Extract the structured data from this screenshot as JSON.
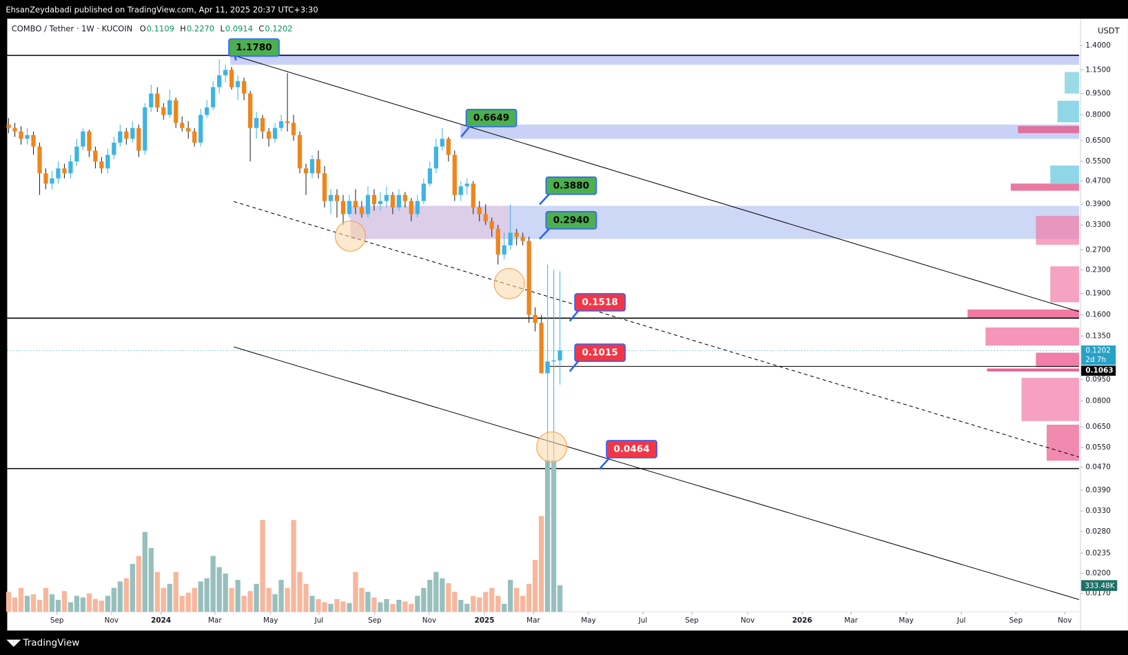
{
  "header": {
    "publisher": "EhsanZeydabadi published on TradingView.com, Apr 11, 2025 20:37 UTC+3:30"
  },
  "chart_data": {
    "type": "candlestick",
    "symbol": "COMBO / Tether · 1W · KUCOIN",
    "legend": [
      {
        "key": "O",
        "value": "0.1109"
      },
      {
        "key": "H",
        "value": "0.2270"
      },
      {
        "key": "L",
        "value": "0.0914"
      },
      {
        "key": "C",
        "value": "0.1202"
      }
    ],
    "currency": "USDT",
    "log_scale": true,
    "up_color": "#3db4e4",
    "down_color": "#f0851a",
    "volume_up_color": "#97bfbd",
    "volume_down_color": "#f7b79d",
    "open": [
      0.74,
      0.72,
      0.7,
      0.66,
      0.68,
      0.62,
      0.5,
      0.46,
      0.48,
      0.52,
      0.5,
      0.55,
      0.62,
      0.7,
      0.6,
      0.55,
      0.52,
      0.58,
      0.64,
      0.7,
      0.66,
      0.72,
      0.6,
      0.85,
      0.95,
      0.85,
      0.8,
      0.9,
      0.75,
      0.72,
      0.7,
      0.64,
      0.8,
      0.85,
      1.0,
      1.1,
      1.15,
      1.0,
      1.05,
      0.95,
      0.72,
      0.78,
      0.7,
      0.66,
      0.72,
      0.76,
      0.75,
      0.68,
      0.52,
      0.5,
      0.56,
      0.5,
      0.4,
      0.42,
      0.4,
      0.36,
      0.4,
      0.38,
      0.36,
      0.42,
      0.39,
      0.4,
      0.42,
      0.38,
      0.42,
      0.4,
      0.36,
      0.4,
      0.46,
      0.52,
      0.62,
      0.66,
      0.58,
      0.42,
      0.45,
      0.46,
      0.38,
      0.36,
      0.34,
      0.32,
      0.26,
      0.28,
      0.31,
      0.3,
      0.29,
      0.16,
      0.15,
      0.1,
      0.11,
      0.1109
    ],
    "high": [
      0.78,
      0.75,
      0.73,
      0.72,
      0.7,
      0.64,
      0.52,
      0.51,
      0.55,
      0.54,
      0.58,
      0.66,
      0.72,
      0.71,
      0.62,
      0.57,
      0.61,
      0.67,
      0.74,
      0.72,
      0.76,
      0.74,
      0.88,
      1.02,
      1.0,
      0.88,
      0.98,
      0.92,
      0.79,
      0.76,
      0.72,
      0.84,
      0.9,
      1.05,
      1.25,
      1.2,
      1.178,
      1.1,
      1.08,
      0.97,
      0.82,
      0.8,
      0.72,
      0.75,
      0.8,
      1.12,
      0.8,
      0.7,
      0.54,
      0.58,
      0.6,
      0.53,
      0.44,
      0.44,
      0.42,
      0.42,
      0.44,
      0.4,
      0.45,
      0.44,
      0.43,
      0.45,
      0.43,
      0.44,
      0.43,
      0.41,
      0.42,
      0.48,
      0.55,
      0.66,
      0.72,
      0.67,
      0.6,
      0.47,
      0.48,
      0.47,
      0.4,
      0.39,
      0.35,
      0.33,
      0.31,
      0.39,
      0.32,
      0.31,
      0.3,
      0.17,
      0.16,
      0.24,
      0.23,
      0.227
    ],
    "low": [
      0.69,
      0.67,
      0.63,
      0.63,
      0.58,
      0.42,
      0.44,
      0.44,
      0.46,
      0.48,
      0.48,
      0.53,
      0.6,
      0.57,
      0.52,
      0.5,
      0.5,
      0.56,
      0.62,
      0.63,
      0.64,
      0.57,
      0.58,
      0.82,
      0.82,
      0.77,
      0.78,
      0.72,
      0.7,
      0.66,
      0.62,
      0.62,
      0.78,
      0.83,
      0.95,
      1.04,
      0.98,
      0.9,
      0.9,
      0.55,
      0.66,
      0.66,
      0.62,
      0.64,
      0.7,
      0.7,
      0.65,
      0.5,
      0.42,
      0.48,
      0.48,
      0.38,
      0.36,
      0.35,
      0.33,
      0.35,
      0.36,
      0.35,
      0.35,
      0.37,
      0.37,
      0.38,
      0.36,
      0.37,
      0.38,
      0.34,
      0.35,
      0.39,
      0.45,
      0.5,
      0.6,
      0.55,
      0.4,
      0.4,
      0.42,
      0.36,
      0.34,
      0.33,
      0.3,
      0.24,
      0.25,
      0.27,
      0.28,
      0.28,
      0.15,
      0.14,
      0.1,
      0.0464,
      0.05,
      0.0914
    ],
    "close": [
      0.72,
      0.7,
      0.66,
      0.68,
      0.62,
      0.5,
      0.46,
      0.48,
      0.52,
      0.5,
      0.55,
      0.62,
      0.7,
      0.6,
      0.55,
      0.52,
      0.58,
      0.64,
      0.7,
      0.66,
      0.72,
      0.6,
      0.85,
      0.95,
      0.85,
      0.8,
      0.9,
      0.75,
      0.72,
      0.7,
      0.64,
      0.8,
      0.85,
      1.0,
      1.1,
      1.15,
      1.0,
      1.05,
      0.95,
      0.72,
      0.78,
      0.7,
      0.66,
      0.72,
      0.76,
      0.75,
      0.68,
      0.52,
      0.5,
      0.56,
      0.5,
      0.4,
      0.42,
      0.4,
      0.36,
      0.4,
      0.38,
      0.36,
      0.42,
      0.39,
      0.4,
      0.42,
      0.38,
      0.42,
      0.4,
      0.36,
      0.4,
      0.46,
      0.52,
      0.62,
      0.66,
      0.58,
      0.42,
      0.45,
      0.46,
      0.38,
      0.36,
      0.34,
      0.32,
      0.26,
      0.28,
      0.31,
      0.3,
      0.29,
      0.16,
      0.15,
      0.1,
      0.11,
      0.1109,
      0.1202
    ],
    "volume": [
      250000,
      180000,
      300000,
      200000,
      220000,
      150000,
      300000,
      220000,
      150000,
      260000,
      120000,
      200000,
      180000,
      230000,
      160000,
      140000,
      200000,
      300000,
      380000,
      420000,
      600000,
      700000,
      1000000,
      800000,
      500000,
      300000,
      350000,
      500000,
      200000,
      240000,
      300000,
      380000,
      420000,
      700000,
      560000,
      480000,
      300000,
      400000,
      200000,
      260000,
      350000,
      1150000,
      300000,
      220000,
      400000,
      300000,
      1150000,
      500000,
      350000,
      200000,
      160000,
      120000,
      100000,
      160000,
      130000,
      110000,
      500000,
      300000,
      250000,
      180000,
      120000,
      160000,
      100000,
      150000,
      130000,
      100000,
      200000,
      300000,
      400000,
      500000,
      420000,
      360000,
      250000,
      150000,
      100000,
      200000,
      180000,
      250000,
      300000,
      200000,
      100000,
      400000,
      300000,
      200000,
      350000,
      650000,
      1200000,
      1900000,
      1900000,
      333480
    ],
    "volume_label": "333.48K",
    "vlim": [
      0,
      7430000
    ],
    "ylim": [
      0.01466,
      1.735
    ],
    "yticks": [
      {
        "value": 1.4,
        "label": "1.4000"
      },
      {
        "value": 1.15,
        "label": "1.1500"
      },
      {
        "value": 0.95,
        "label": "0.9500"
      },
      {
        "value": 0.8,
        "label": "0.8000"
      },
      {
        "value": 0.65,
        "label": "0.6500"
      },
      {
        "value": 0.55,
        "label": "0.5500"
      },
      {
        "value": 0.47,
        "label": "0.4700"
      },
      {
        "value": 0.39,
        "label": "0.3900"
      },
      {
        "value": 0.33,
        "label": "0.3300"
      },
      {
        "value": 0.27,
        "label": "0.2700"
      },
      {
        "value": 0.23,
        "label": "0.2300"
      },
      {
        "value": 0.19,
        "label": "0.1900"
      },
      {
        "value": 0.16,
        "label": "0.1600"
      },
      {
        "value": 0.135,
        "label": "0.1350"
      },
      {
        "value": 0.095,
        "label": "0.0950"
      },
      {
        "value": 0.08,
        "label": "0.0800"
      },
      {
        "value": 0.065,
        "label": "0.0650"
      },
      {
        "value": 0.055,
        "label": "0.0550"
      },
      {
        "value": 0.047,
        "label": "0.0470"
      },
      {
        "value": 0.039,
        "label": "0.0390"
      },
      {
        "value": 0.033,
        "label": "0.0330"
      },
      {
        "value": 0.028,
        "label": "0.0280"
      },
      {
        "value": 0.0235,
        "label": "0.0235"
      },
      {
        "value": 0.02,
        "label": "0.0200"
      },
      {
        "value": 0.017,
        "label": "0.0170"
      }
    ],
    "xlim": [
      -0.23,
      172.8
    ],
    "xticks": [
      {
        "value": 7.8,
        "label": "Sep"
      },
      {
        "value": 16.6,
        "label": "Nov"
      },
      {
        "value": 24.6,
        "label": "2024"
      },
      {
        "value": 33.3,
        "label": "Mar"
      },
      {
        "value": 42.3,
        "label": "May"
      },
      {
        "value": 50.1,
        "label": "Jul"
      },
      {
        "value": 59.1,
        "label": "Sep"
      },
      {
        "value": 67.9,
        "label": "Nov"
      },
      {
        "value": 76.8,
        "label": "2025"
      },
      {
        "value": 84.7,
        "label": "Mar"
      },
      {
        "value": 93.6,
        "label": "May"
      },
      {
        "value": 102.4,
        "label": "Jul"
      },
      {
        "value": 110.3,
        "label": "Sep"
      },
      {
        "value": 119.3,
        "label": "Nov"
      },
      {
        "value": 128.1,
        "label": "2026"
      },
      {
        "value": 136.0,
        "label": "Mar"
      },
      {
        "value": 144.9,
        "label": "May"
      },
      {
        "value": 153.8,
        "label": "Jul"
      },
      {
        "value": 162.6,
        "label": "Sep"
      },
      {
        "value": 170.5,
        "label": "Nov"
      }
    ],
    "annotations": [
      {
        "value": 1.178,
        "label": "1.1780"
      },
      {
        "value": 0.6649,
        "label": "0.6649"
      },
      {
        "value": 0.388,
        "label": "0.3880"
      },
      {
        "value": 0.294,
        "label": "0.2940"
      },
      {
        "value": 0.1518,
        "label": "0.1518"
      },
      {
        "value": 0.1015,
        "label": "0.1015"
      },
      {
        "value": 0.0464,
        "label": "0.0464"
      }
    ],
    "price_tags": {
      "last": "0.1202",
      "countdown": "2d 7h",
      "level": "0.1063"
    }
  },
  "footer": {
    "brand": "TradingView"
  }
}
